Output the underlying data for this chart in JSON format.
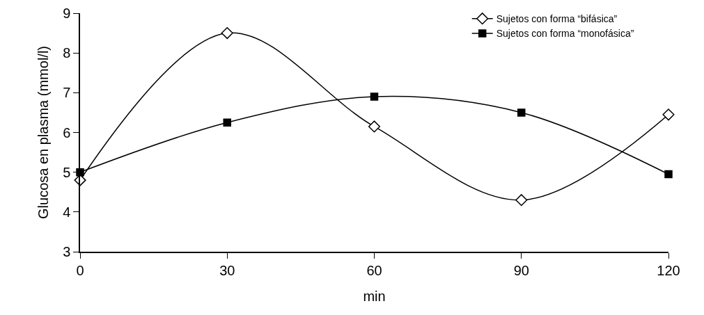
{
  "chart_data": {
    "type": "line",
    "xlabel": "min",
    "ylabel": "Glucosa en plasma (mmol/l)",
    "x": [
      0,
      30,
      60,
      90,
      120
    ],
    "series": [
      {
        "name": "Sujetos con forma “bifásica”",
        "color": "#000000",
        "marker": "diamond",
        "values": [
          4.8,
          8.5,
          6.15,
          4.3,
          6.45
        ]
      },
      {
        "name": "Sujetos con forma “monofásica”",
        "color": "#000000",
        "marker": "square",
        "values": [
          5.0,
          6.25,
          6.9,
          6.5,
          4.95
        ]
      }
    ],
    "xlim": [
      0,
      120
    ],
    "xticks": [
      0,
      30,
      60,
      90,
      120
    ],
    "ylim": [
      3,
      9
    ],
    "yticks": [
      3,
      4,
      5,
      6,
      7,
      8,
      9
    ],
    "grid": false,
    "legend": "top right",
    "line_style": "solid"
  }
}
